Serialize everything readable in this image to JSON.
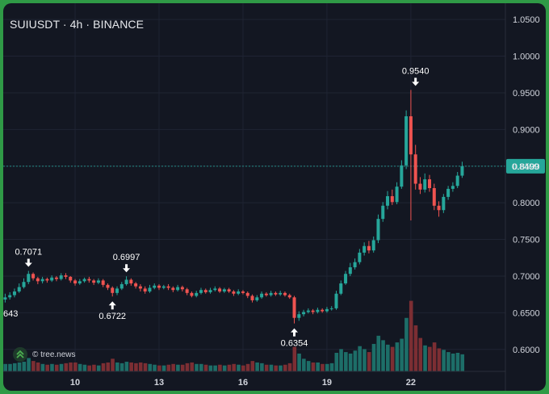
{
  "chart_title": "SUIUSDT · 4h · BINANCE",
  "watermark": "© tree.news",
  "colors": {
    "background": "#131722",
    "grid": "#1f2433",
    "up": "#26a69a",
    "down": "#ef5350",
    "vol_up": "#1d6e68",
    "vol_down": "#7c2e33",
    "last_price": "#26a69a",
    "axis_text": "#d1d4dc"
  },
  "chart_data": {
    "type": "candlestick",
    "title": "SUIUSDT · 4h · BINANCE",
    "xlabel": "",
    "ylabel": "",
    "ylim": [
      0.57,
      1.07
    ],
    "y_ticks": [
      0.6,
      0.65,
      0.7,
      0.75,
      0.8,
      0.85,
      0.9,
      0.95,
      1.0,
      1.05
    ],
    "x_ticks": [
      {
        "label": "10",
        "i": 15
      },
      {
        "label": "13",
        "i": 33
      },
      {
        "label": "16",
        "i": 51
      },
      {
        "label": "19",
        "i": 69
      },
      {
        "label": "22",
        "i": 87
      }
    ],
    "last_price": 0.8499,
    "last_price_label": "0.8499",
    "partial_left_label": "643",
    "annotations": [
      {
        "label": "0.7071",
        "i": 5,
        "price": 0.7071,
        "type": "high"
      },
      {
        "label": "0.6722",
        "i": 23,
        "price": 0.6722,
        "type": "low"
      },
      {
        "label": "0.6997",
        "i": 26,
        "price": 0.6997,
        "type": "high"
      },
      {
        "label": "0.6354",
        "i": 62,
        "price": 0.6354,
        "type": "low"
      },
      {
        "label": "0.9540",
        "i": 88,
        "price": 0.954,
        "type": "high"
      }
    ],
    "candles": [
      [
        0.668,
        0.671,
        0.676,
        0.664,
        0.1
      ],
      [
        0.671,
        0.674,
        0.678,
        0.668,
        0.1
      ],
      [
        0.674,
        0.679,
        0.683,
        0.671,
        0.11
      ],
      [
        0.679,
        0.685,
        0.69,
        0.677,
        0.12
      ],
      [
        0.685,
        0.692,
        0.697,
        0.683,
        0.13
      ],
      [
        0.692,
        0.703,
        0.7071,
        0.689,
        0.18
      ],
      [
        0.703,
        0.697,
        0.705,
        0.694,
        0.14
      ],
      [
        0.697,
        0.693,
        0.699,
        0.689,
        0.12
      ],
      [
        0.693,
        0.696,
        0.699,
        0.69,
        0.1
      ],
      [
        0.696,
        0.694,
        0.698,
        0.691,
        0.09
      ],
      [
        0.694,
        0.698,
        0.701,
        0.692,
        0.1
      ],
      [
        0.698,
        0.696,
        0.7,
        0.693,
        0.09
      ],
      [
        0.696,
        0.701,
        0.704,
        0.694,
        0.1
      ],
      [
        0.701,
        0.699,
        0.704,
        0.696,
        0.11
      ],
      [
        0.699,
        0.694,
        0.7,
        0.691,
        0.12
      ],
      [
        0.694,
        0.69,
        0.696,
        0.687,
        0.12
      ],
      [
        0.69,
        0.693,
        0.696,
        0.688,
        0.1
      ],
      [
        0.693,
        0.696,
        0.698,
        0.691,
        0.09
      ],
      [
        0.696,
        0.694,
        0.699,
        0.691,
        0.08
      ],
      [
        0.694,
        0.691,
        0.696,
        0.688,
        0.09
      ],
      [
        0.691,
        0.694,
        0.697,
        0.689,
        0.08
      ],
      [
        0.694,
        0.688,
        0.696,
        0.685,
        0.11
      ],
      [
        0.688,
        0.684,
        0.69,
        0.681,
        0.12
      ],
      [
        0.684,
        0.677,
        0.686,
        0.6722,
        0.17
      ],
      [
        0.677,
        0.683,
        0.686,
        0.674,
        0.12
      ],
      [
        0.683,
        0.689,
        0.692,
        0.681,
        0.11
      ],
      [
        0.689,
        0.695,
        0.6997,
        0.687,
        0.13
      ],
      [
        0.695,
        0.69,
        0.697,
        0.687,
        0.12
      ],
      [
        0.69,
        0.686,
        0.692,
        0.683,
        0.11
      ],
      [
        0.686,
        0.683,
        0.689,
        0.679,
        0.12
      ],
      [
        0.683,
        0.679,
        0.686,
        0.676,
        0.11
      ],
      [
        0.679,
        0.684,
        0.688,
        0.677,
        0.1
      ],
      [
        0.684,
        0.687,
        0.69,
        0.682,
        0.09
      ],
      [
        0.687,
        0.684,
        0.689,
        0.681,
        0.08
      ],
      [
        0.684,
        0.686,
        0.688,
        0.682,
        0.08
      ],
      [
        0.686,
        0.684,
        0.689,
        0.681,
        0.09
      ],
      [
        0.684,
        0.681,
        0.686,
        0.678,
        0.1
      ],
      [
        0.681,
        0.685,
        0.688,
        0.679,
        0.09
      ],
      [
        0.685,
        0.682,
        0.687,
        0.679,
        0.09
      ],
      [
        0.682,
        0.677,
        0.684,
        0.674,
        0.11
      ],
      [
        0.677,
        0.673,
        0.679,
        0.671,
        0.12
      ],
      [
        0.673,
        0.677,
        0.68,
        0.671,
        0.1
      ],
      [
        0.677,
        0.681,
        0.684,
        0.675,
        0.1
      ],
      [
        0.681,
        0.678,
        0.683,
        0.676,
        0.09
      ],
      [
        0.678,
        0.681,
        0.684,
        0.676,
        0.08
      ],
      [
        0.681,
        0.683,
        0.686,
        0.679,
        0.08
      ],
      [
        0.683,
        0.679,
        0.685,
        0.677,
        0.09
      ],
      [
        0.679,
        0.682,
        0.684,
        0.677,
        0.08
      ],
      [
        0.682,
        0.679,
        0.684,
        0.677,
        0.09
      ],
      [
        0.679,
        0.676,
        0.681,
        0.673,
        0.1
      ],
      [
        0.676,
        0.679,
        0.682,
        0.674,
        0.09
      ],
      [
        0.679,
        0.677,
        0.681,
        0.675,
        0.08
      ],
      [
        0.677,
        0.673,
        0.679,
        0.67,
        0.1
      ],
      [
        0.673,
        0.667,
        0.675,
        0.664,
        0.14
      ],
      [
        0.667,
        0.671,
        0.674,
        0.665,
        0.12
      ],
      [
        0.671,
        0.676,
        0.679,
        0.669,
        0.11
      ],
      [
        0.676,
        0.674,
        0.678,
        0.672,
        0.09
      ],
      [
        0.674,
        0.677,
        0.68,
        0.672,
        0.09
      ],
      [
        0.677,
        0.675,
        0.679,
        0.673,
        0.08
      ],
      [
        0.675,
        0.677,
        0.68,
        0.673,
        0.08
      ],
      [
        0.677,
        0.674,
        0.679,
        0.672,
        0.09
      ],
      [
        0.674,
        0.671,
        0.676,
        0.669,
        0.11
      ],
      [
        0.671,
        0.643,
        0.673,
        0.6354,
        0.33
      ],
      [
        0.643,
        0.648,
        0.652,
        0.639,
        0.24
      ],
      [
        0.648,
        0.651,
        0.654,
        0.645,
        0.17
      ],
      [
        0.651,
        0.653,
        0.656,
        0.649,
        0.14
      ],
      [
        0.653,
        0.651,
        0.655,
        0.648,
        0.12
      ],
      [
        0.651,
        0.654,
        0.657,
        0.649,
        0.12
      ],
      [
        0.654,
        0.652,
        0.656,
        0.65,
        0.1
      ],
      [
        0.652,
        0.655,
        0.658,
        0.65,
        0.1
      ],
      [
        0.655,
        0.656,
        0.659,
        0.653,
        0.11
      ],
      [
        0.656,
        0.676,
        0.68,
        0.654,
        0.25
      ],
      [
        0.676,
        0.69,
        0.694,
        0.674,
        0.3
      ],
      [
        0.69,
        0.703,
        0.707,
        0.688,
        0.26
      ],
      [
        0.703,
        0.712,
        0.718,
        0.7,
        0.24
      ],
      [
        0.712,
        0.719,
        0.724,
        0.709,
        0.28
      ],
      [
        0.719,
        0.732,
        0.737,
        0.716,
        0.34
      ],
      [
        0.732,
        0.741,
        0.746,
        0.728,
        0.3
      ],
      [
        0.741,
        0.735,
        0.748,
        0.731,
        0.26
      ],
      [
        0.735,
        0.749,
        0.754,
        0.732,
        0.37
      ],
      [
        0.749,
        0.778,
        0.784,
        0.745,
        0.48
      ],
      [
        0.778,
        0.796,
        0.801,
        0.774,
        0.42
      ],
      [
        0.796,
        0.809,
        0.816,
        0.791,
        0.36
      ],
      [
        0.809,
        0.801,
        0.818,
        0.797,
        0.33
      ],
      [
        0.801,
        0.822,
        0.828,
        0.798,
        0.39
      ],
      [
        0.822,
        0.851,
        0.858,
        0.819,
        0.44
      ],
      [
        0.851,
        0.918,
        0.926,
        0.846,
        0.72
      ],
      [
        0.918,
        0.866,
        0.954,
        0.776,
        0.95
      ],
      [
        0.866,
        0.826,
        0.879,
        0.818,
        0.62
      ],
      [
        0.826,
        0.818,
        0.835,
        0.812,
        0.45
      ],
      [
        0.818,
        0.832,
        0.84,
        0.814,
        0.35
      ],
      [
        0.832,
        0.82,
        0.838,
        0.815,
        0.33
      ],
      [
        0.82,
        0.796,
        0.826,
        0.79,
        0.39
      ],
      [
        0.796,
        0.79,
        0.802,
        0.781,
        0.31
      ],
      [
        0.79,
        0.808,
        0.812,
        0.786,
        0.29
      ],
      [
        0.808,
        0.819,
        0.823,
        0.804,
        0.26
      ],
      [
        0.819,
        0.823,
        0.828,
        0.815,
        0.24
      ],
      [
        0.823,
        0.837,
        0.842,
        0.82,
        0.25
      ],
      [
        0.837,
        0.8499,
        0.856,
        0.834,
        0.23
      ]
    ]
  }
}
